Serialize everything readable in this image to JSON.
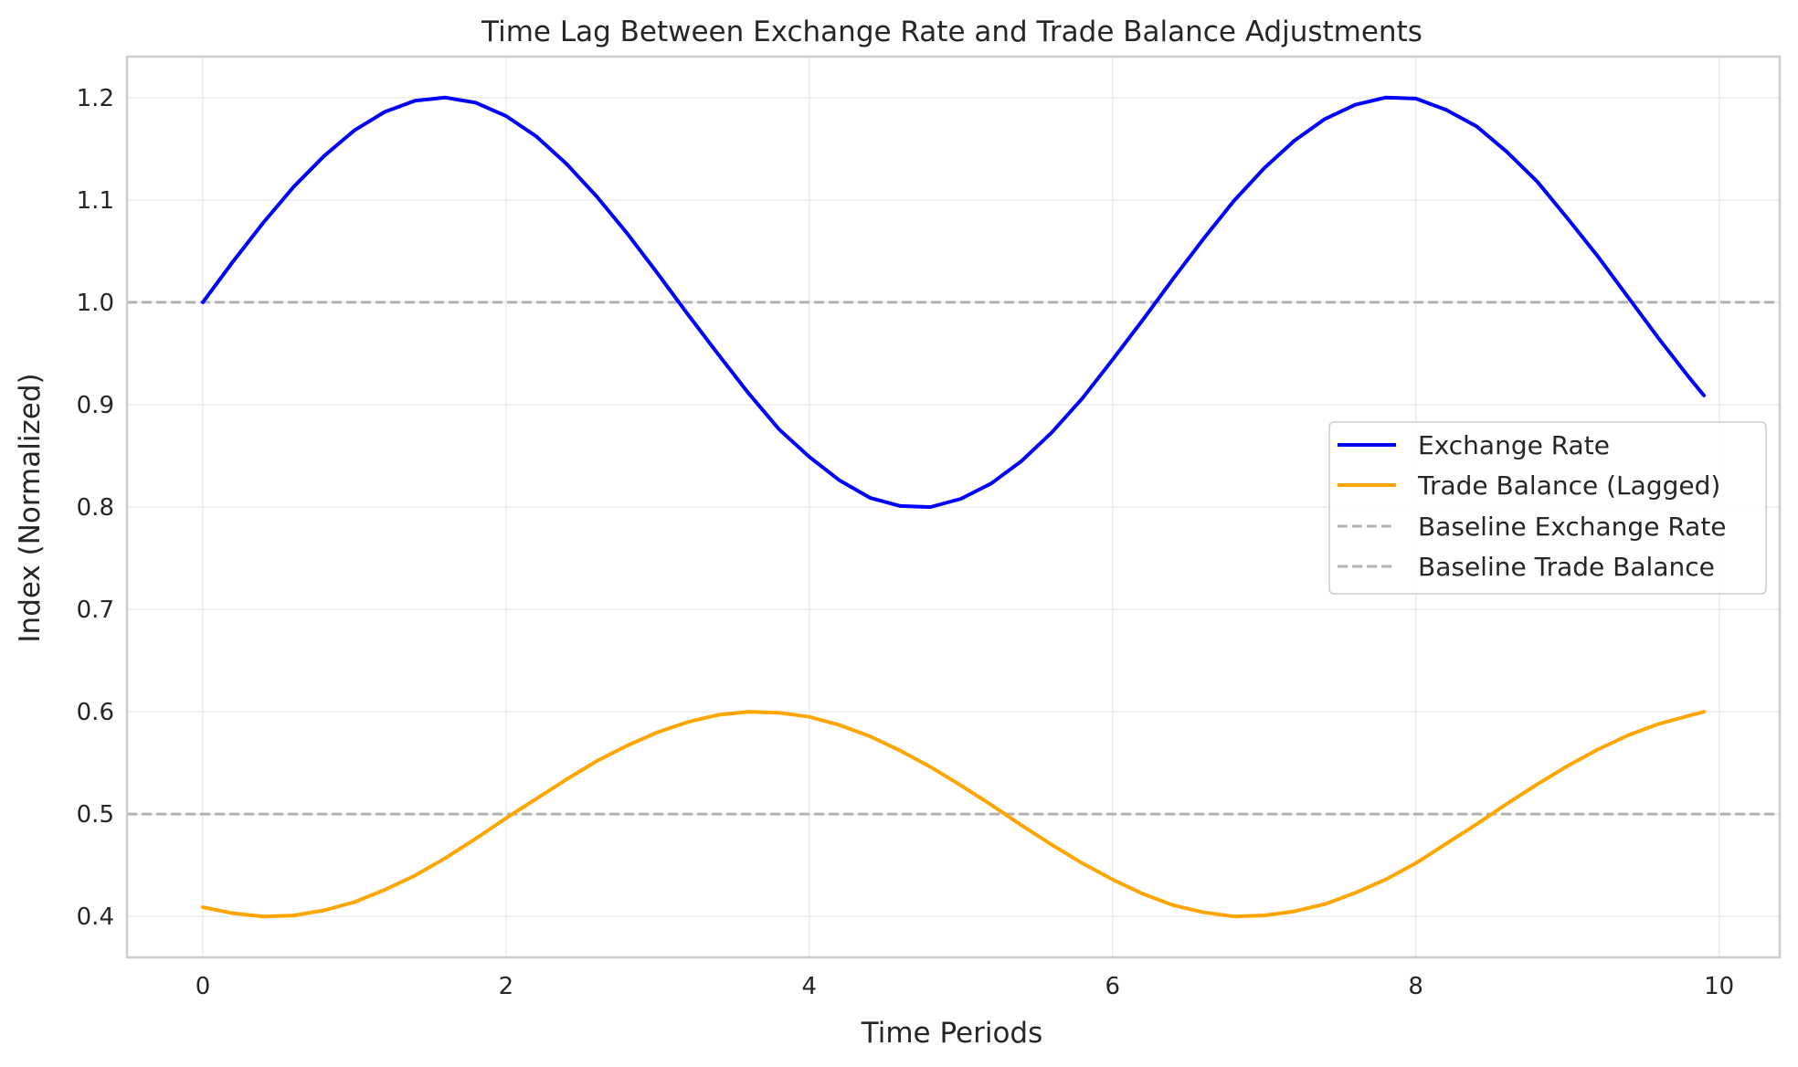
{
  "chart_data": {
    "type": "line",
    "title": "Time Lag Between Exchange Rate and Trade Balance Adjustments",
    "xlabel": "Time Periods",
    "ylabel": "Index (Normalized)",
    "xlim": [
      -0.5,
      10.4
    ],
    "ylim": [
      0.36,
      1.24
    ],
    "xticks": [
      0,
      2,
      4,
      6,
      8,
      10
    ],
    "yticks": [
      0.4,
      0.5,
      0.6,
      0.7,
      0.8,
      0.9,
      1.0,
      1.1,
      1.2
    ],
    "xtick_labels": [
      "0",
      "2",
      "4",
      "6",
      "8",
      "10"
    ],
    "ytick_labels": [
      "0.4",
      "0.5",
      "0.6",
      "0.7",
      "0.8",
      "0.9",
      "1.0",
      "1.1",
      "1.2"
    ],
    "grid": true,
    "legend_position": "center-right",
    "series": [
      {
        "name": "Exchange Rate",
        "color": "#0000ff",
        "style": "solid",
        "x": [
          0,
          0.2,
          0.4,
          0.6,
          0.8,
          1.0,
          1.2,
          1.4,
          1.6,
          1.8,
          2.0,
          2.2,
          2.4,
          2.6,
          2.8,
          3.0,
          3.2,
          3.4,
          3.6,
          3.8,
          4.0,
          4.2,
          4.4,
          4.6,
          4.8,
          5.0,
          5.2,
          5.4,
          5.6,
          5.8,
          6.0,
          6.2,
          6.4,
          6.6,
          6.8,
          7.0,
          7.2,
          7.4,
          7.6,
          7.8,
          8.0,
          8.2,
          8.4,
          8.6,
          8.8,
          9.0,
          9.2,
          9.4,
          9.6,
          9.8,
          9.9
        ],
        "values": [
          1.0,
          1.04,
          1.078,
          1.113,
          1.143,
          1.168,
          1.186,
          1.197,
          1.2,
          1.195,
          1.182,
          1.162,
          1.135,
          1.103,
          1.067,
          1.028,
          0.988,
          0.949,
          0.911,
          0.876,
          0.849,
          0.826,
          0.809,
          0.801,
          0.8,
          0.808,
          0.823,
          0.845,
          0.873,
          0.906,
          0.944,
          0.983,
          1.023,
          1.062,
          1.099,
          1.131,
          1.158,
          1.179,
          1.193,
          1.2,
          1.199,
          1.188,
          1.172,
          1.147,
          1.118,
          1.082,
          1.045,
          1.005,
          0.965,
          0.927,
          0.909
        ]
      },
      {
        "name": "Trade Balance (Lagged)",
        "color": "#ffa500",
        "style": "solid",
        "x": [
          0,
          0.2,
          0.4,
          0.6,
          0.8,
          1.0,
          1.2,
          1.4,
          1.6,
          1.8,
          2.0,
          2.2,
          2.4,
          2.6,
          2.8,
          3.0,
          3.2,
          3.4,
          3.6,
          3.8,
          4.0,
          4.2,
          4.4,
          4.6,
          4.8,
          5.0,
          5.2,
          5.4,
          5.6,
          5.8,
          6.0,
          6.2,
          6.4,
          6.6,
          6.8,
          7.0,
          7.2,
          7.4,
          7.6,
          7.8,
          8.0,
          8.2,
          8.4,
          8.6,
          8.8,
          9.0,
          9.2,
          9.4,
          9.6,
          9.8,
          9.9
        ],
        "values": [
          0.409,
          0.403,
          0.4,
          0.401,
          0.406,
          0.414,
          0.426,
          0.44,
          0.457,
          0.476,
          0.496,
          0.515,
          0.534,
          0.552,
          0.567,
          0.58,
          0.59,
          0.597,
          0.6,
          0.599,
          0.595,
          0.587,
          0.576,
          0.562,
          0.546,
          0.528,
          0.509,
          0.489,
          0.47,
          0.452,
          0.436,
          0.422,
          0.411,
          0.404,
          0.4,
          0.401,
          0.405,
          0.412,
          0.423,
          0.436,
          0.452,
          0.471,
          0.49,
          0.51,
          0.529,
          0.547,
          0.563,
          0.577,
          0.588,
          0.596,
          0.6
        ]
      },
      {
        "name": "Baseline Exchange Rate",
        "color": "#b2b2b2",
        "style": "dashed",
        "y": 1.0
      },
      {
        "name": "Baseline Trade Balance",
        "color": "#b2b2b2",
        "style": "dashed",
        "y": 0.5
      }
    ]
  }
}
